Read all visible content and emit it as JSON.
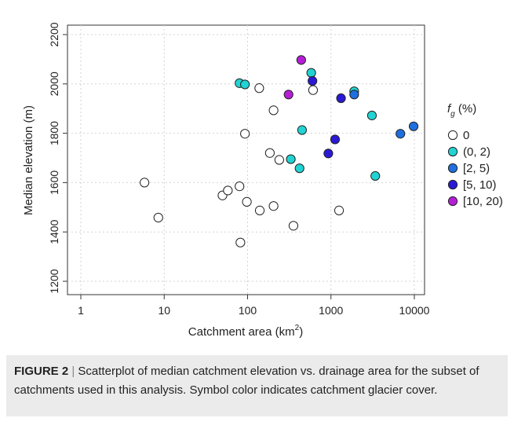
{
  "chart_data": {
    "type": "scatter",
    "title": "",
    "xlabel": "Catchment area (km",
    "xlabel_sup": "2",
    "xlabel_close": ")",
    "ylabel": "Median elevation (m)",
    "x_scale": "log",
    "xlim": [
      1,
      10000
    ],
    "ylim": [
      1200,
      2200
    ],
    "x_ticks": [
      1,
      10,
      100,
      1000,
      10000
    ],
    "x_tick_labels": [
      "1",
      "10",
      "100",
      "1000",
      "10000"
    ],
    "y_ticks": [
      1200,
      1400,
      1600,
      1800,
      2000,
      2200
    ],
    "y_tick_labels": [
      "1200",
      "1400",
      "1600",
      "1800",
      "2000",
      "2200"
    ],
    "grid": true,
    "legend": {
      "placement": "right",
      "title_main": "f",
      "title_sub": "g",
      "title_rest": " (%)",
      "entries": [
        "0",
        "(0, 2)",
        "[2, 5)",
        "[5, 10)",
        "[10, 20)"
      ]
    },
    "series": [
      {
        "name": "0",
        "color": "#ffffff",
        "points": [
          [
            5.8,
            1600
          ],
          [
            8.5,
            1458
          ],
          [
            50,
            1548
          ],
          [
            58,
            1568
          ],
          [
            80,
            1585
          ],
          [
            82,
            1357
          ],
          [
            93,
            1798
          ],
          [
            98,
            1522
          ],
          [
            138,
            1983
          ],
          [
            140,
            1487
          ],
          [
            185,
            1720
          ],
          [
            205,
            1893
          ],
          [
            205,
            1505
          ],
          [
            240,
            1692
          ],
          [
            355,
            1425
          ],
          [
            610,
            1975
          ],
          [
            1250,
            1487
          ]
        ]
      },
      {
        "name": "(0, 2)",
        "color": "#22d3d3",
        "points": [
          [
            80,
            2003
          ],
          [
            93,
            1998
          ],
          [
            330,
            1695
          ],
          [
            420,
            1658
          ],
          [
            450,
            1813
          ],
          [
            580,
            2045
          ],
          [
            1900,
            1970
          ],
          [
            3100,
            1872
          ],
          [
            3400,
            1627
          ]
        ]
      },
      {
        "name": "[2, 5)",
        "color": "#1f6fe0",
        "points": [
          [
            1900,
            1957
          ],
          [
            6800,
            1798
          ],
          [
            9800,
            1828
          ]
        ]
      },
      {
        "name": "[5, 10)",
        "color": "#2a1ad6",
        "points": [
          [
            600,
            2012
          ],
          [
            930,
            1718
          ],
          [
            1120,
            1775
          ],
          [
            1320,
            1942
          ]
        ]
      },
      {
        "name": "[10, 20)",
        "color": "#b41fd6",
        "points": [
          [
            310,
            1957
          ],
          [
            440,
            2097
          ]
        ]
      }
    ]
  },
  "caption": {
    "label": "FIGURE 2",
    "separator": " | ",
    "text": "Scatterplot of median catchment elevation vs. drainage area for the subset of catchments used in this analysis. Symbol color indicates catchment glacier cover."
  }
}
